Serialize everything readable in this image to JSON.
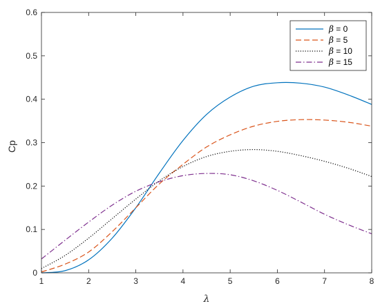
{
  "chart_data": {
    "type": "line",
    "title": "",
    "xlabel": "λ",
    "ylabel": "Cp",
    "xlim": [
      1,
      8
    ],
    "ylim": [
      0,
      0.6
    ],
    "xticks": [
      1,
      2,
      3,
      4,
      5,
      6,
      7,
      8
    ],
    "yticks": [
      0,
      0.1,
      0.2,
      0.3,
      0.4,
      0.5,
      0.6
    ],
    "xtick_labels": [
      "1",
      "2",
      "3",
      "4",
      "5",
      "6",
      "7",
      "8"
    ],
    "ytick_labels": [
      "0",
      "0.1",
      "0.2",
      "0.3",
      "0.4",
      "0.5",
      "0.6"
    ],
    "grid": false,
    "legend_position": "top-right",
    "series": [
      {
        "name": "β = 0",
        "legend_symbol": "β",
        "legend_rest": " = 0",
        "color": "#0072BD",
        "dash": "solid",
        "x": [
          1,
          1.5,
          2,
          2.5,
          3,
          3.5,
          4,
          4.5,
          5,
          5.5,
          6,
          6.5,
          7,
          7.5,
          8
        ],
        "y": [
          0.0,
          0.005,
          0.03,
          0.08,
          0.15,
          0.23,
          0.305,
          0.365,
          0.405,
          0.43,
          0.438,
          0.437,
          0.428,
          0.41,
          0.388
        ]
      },
      {
        "name": "β = 5",
        "legend_symbol": "β",
        "legend_rest": " = 5",
        "color": "#D95319",
        "dash": "dashed",
        "x": [
          1,
          1.5,
          2,
          2.5,
          3,
          3.5,
          4,
          4.5,
          5,
          5.5,
          6,
          6.5,
          7,
          7.5,
          8
        ],
        "y": [
          0.002,
          0.02,
          0.048,
          0.095,
          0.15,
          0.205,
          0.25,
          0.29,
          0.318,
          0.338,
          0.349,
          0.353,
          0.352,
          0.347,
          0.338
        ]
      },
      {
        "name": "β = 10",
        "legend_symbol": "β",
        "legend_rest": " = 10",
        "color": "#000000",
        "dash": "dotted",
        "x": [
          1,
          1.5,
          2,
          2.5,
          3,
          3.5,
          4,
          4.5,
          5,
          5.5,
          6,
          6.5,
          7,
          7.5,
          8
        ],
        "y": [
          0.01,
          0.04,
          0.08,
          0.125,
          0.17,
          0.212,
          0.245,
          0.268,
          0.28,
          0.284,
          0.28,
          0.27,
          0.257,
          0.241,
          0.222
        ]
      },
      {
        "name": "β = 15",
        "legend_symbol": "β",
        "legend_rest": " = 15",
        "color": "#7E2F8E",
        "dash": "dashdot",
        "x": [
          1,
          1.5,
          2,
          2.5,
          3,
          3.5,
          4,
          4.5,
          5,
          5.5,
          6,
          6.5,
          7,
          7.5,
          8
        ],
        "y": [
          0.032,
          0.075,
          0.117,
          0.156,
          0.188,
          0.21,
          0.224,
          0.229,
          0.226,
          0.212,
          0.19,
          0.163,
          0.135,
          0.111,
          0.09
        ]
      }
    ]
  }
}
